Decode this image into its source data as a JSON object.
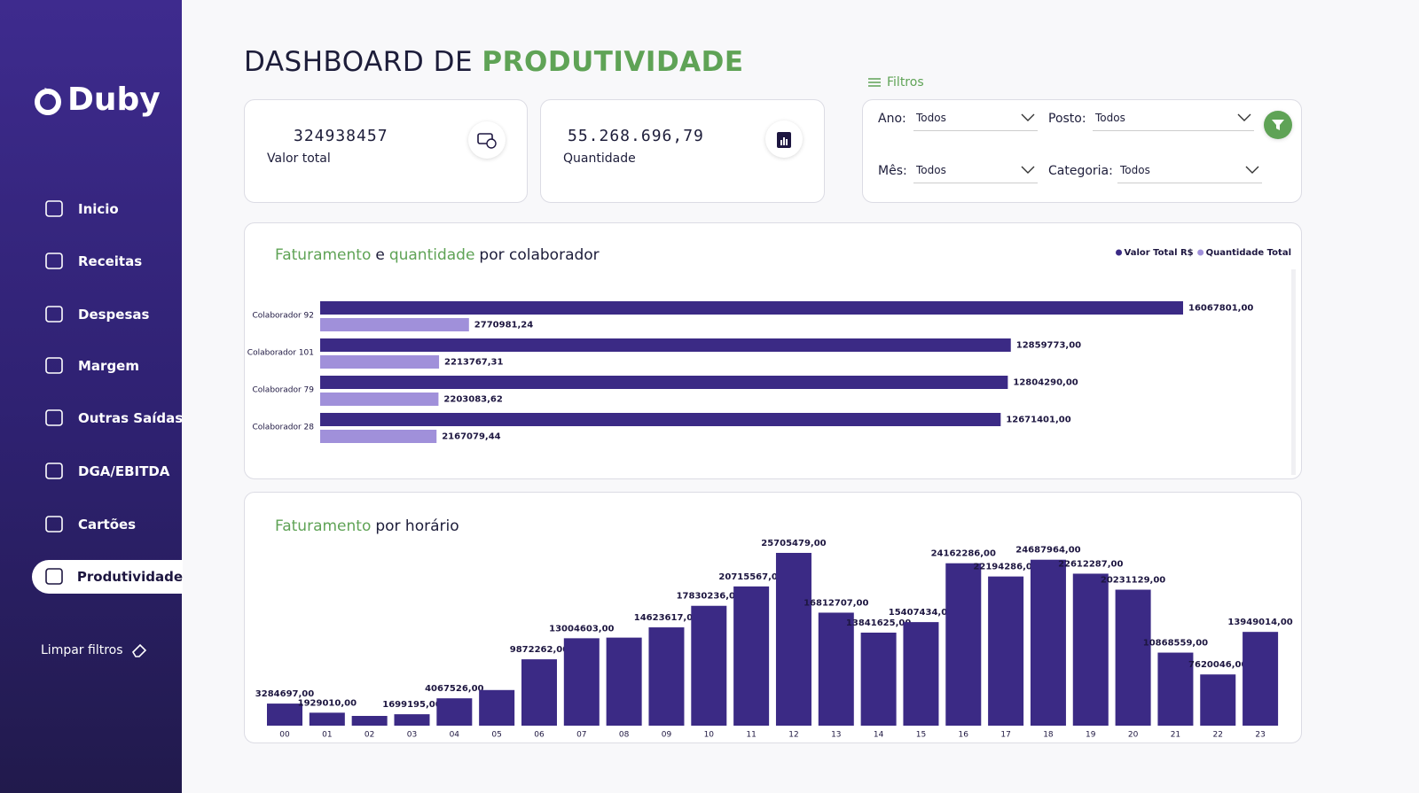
{
  "sidebar": {
    "logo": "Duby",
    "nav": [
      "Inicio",
      "Receitas",
      "Despesas",
      "Margem",
      "Outras Saídas",
      "DGA/EBITDA",
      "Cartões",
      "Produtividade"
    ],
    "active": 7,
    "clear_filters": "Limpar filtros"
  },
  "header": {
    "title_prefix": "DASHBOARD DE",
    "title_highlight": "PRODUTIVIDADE"
  },
  "kpis": [
    {
      "value": "324938457",
      "label": "Valor total"
    },
    {
      "value": "55.268.696,79",
      "label": "Quantidade"
    }
  ],
  "filters": {
    "title": "Filtros",
    "fields": [
      {
        "label": "Ano:",
        "value": "Todos"
      },
      {
        "label": "Posto:",
        "value": "Todos"
      },
      {
        "label": "Mês:",
        "value": "Todos"
      },
      {
        "label": "Categoria:",
        "value": "Todos"
      }
    ]
  },
  "chart_data": [
    {
      "type": "hbar",
      "title": [
        {
          "text": "Faturamento",
          "highlight": true
        },
        {
          "text": "e",
          "highlight": false
        },
        {
          "text": "quantidade",
          "highlight": true
        },
        {
          "text": "por colaborador",
          "highlight": false
        }
      ],
      "legend": "top-right",
      "categories": [
        "Colaborador 92",
        "Colaborador 101",
        "Colaborador 79",
        "Colaborador 28"
      ],
      "series": [
        {
          "name": "Valor Total R$",
          "color": "#3b2a85",
          "values": [
            16067801,
            12859773,
            12804290,
            12671401
          ],
          "value_labels": [
            "16067801,00",
            "12859773,00",
            "12804290,00",
            "12671401,00"
          ]
        },
        {
          "name": "Quantidade Total",
          "color": "#a090da",
          "values": [
            2770981.24,
            2213767.31,
            2203083.62,
            2167079.44
          ],
          "value_labels": [
            "2770981,24",
            "2213767,31",
            "2203083,62",
            "2167079,44"
          ]
        }
      ]
    },
    {
      "type": "bar",
      "title": [
        {
          "text": "Faturamento",
          "highlight": true
        },
        {
          "text": "por horário",
          "highlight": false
        }
      ],
      "color": "#3b2a85",
      "categories": [
        "00",
        "01",
        "02",
        "03",
        "04",
        "05",
        "06",
        "07",
        "08",
        "09",
        "10",
        "11",
        "12",
        "13",
        "14",
        "15",
        "16",
        "17",
        "18",
        "19",
        "20",
        "21",
        "22",
        "23"
      ],
      "values": [
        3284697,
        1929010,
        1450000,
        1699195,
        4067526,
        5300000,
        9872262,
        13004603,
        13100000,
        14623617,
        17830236,
        20715567,
        25705479,
        16812707,
        13841625,
        15407434,
        24162286,
        22194286,
        24687964,
        22612287,
        20231129,
        10868559,
        7620046,
        13949014
      ],
      "value_labels": [
        "3284697,00",
        "1929010,00",
        null,
        "1699195,00",
        "4067526,00",
        null,
        "9872262,00",
        "13004603,00",
        null,
        "14623617,00",
        "17830236,00",
        "20715567,00",
        "25705479,00",
        "16812707,00",
        "13841625,00",
        "15407434,00",
        "24162286,00",
        "22194286,00",
        "24687964,00",
        "22612287,00",
        "20231129,00",
        "10868559,00",
        "7620046,00",
        "13949014,00"
      ]
    }
  ]
}
